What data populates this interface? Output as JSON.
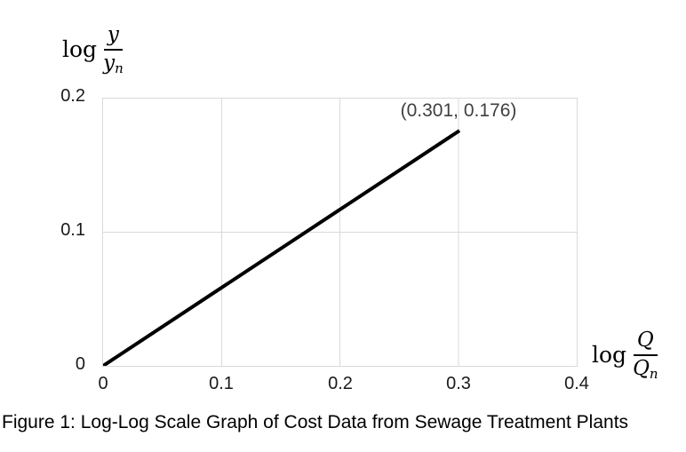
{
  "figure": {
    "caption": "Figure 1: Log-Log Scale Graph of Cost Data from Sewage Treatment Plants"
  },
  "chart_data": {
    "type": "line",
    "title": "",
    "xlabel_math": {
      "prefix": "log",
      "numerator": "Q",
      "denominator": "Q",
      "denominator_subscript": "n"
    },
    "ylabel_math": {
      "prefix": "log",
      "numerator": "y",
      "denominator": "y",
      "denominator_subscript": "n"
    },
    "xlim": [
      0,
      0.4
    ],
    "ylim": [
      0,
      0.2
    ],
    "xticks": [
      0,
      0.1,
      0.2,
      0.3,
      0.4
    ],
    "xtick_labels": [
      "0",
      "0.1",
      "0.2",
      "0.3",
      "0.4"
    ],
    "yticks": [
      0,
      0.1,
      0.2
    ],
    "ytick_labels": [
      "0",
      "0.1",
      "0.2"
    ],
    "grid": true,
    "gridline_color": "#d9d9d9",
    "series": [
      {
        "name": "cost-data-line",
        "points": [
          [
            0,
            0
          ],
          [
            0.301,
            0.176
          ]
        ],
        "color": "#000000",
        "width": 4
      }
    ],
    "annotation": {
      "text": "(0.301, 0.176)",
      "x": 0.301,
      "y": 0.176,
      "color": "#404040"
    }
  }
}
